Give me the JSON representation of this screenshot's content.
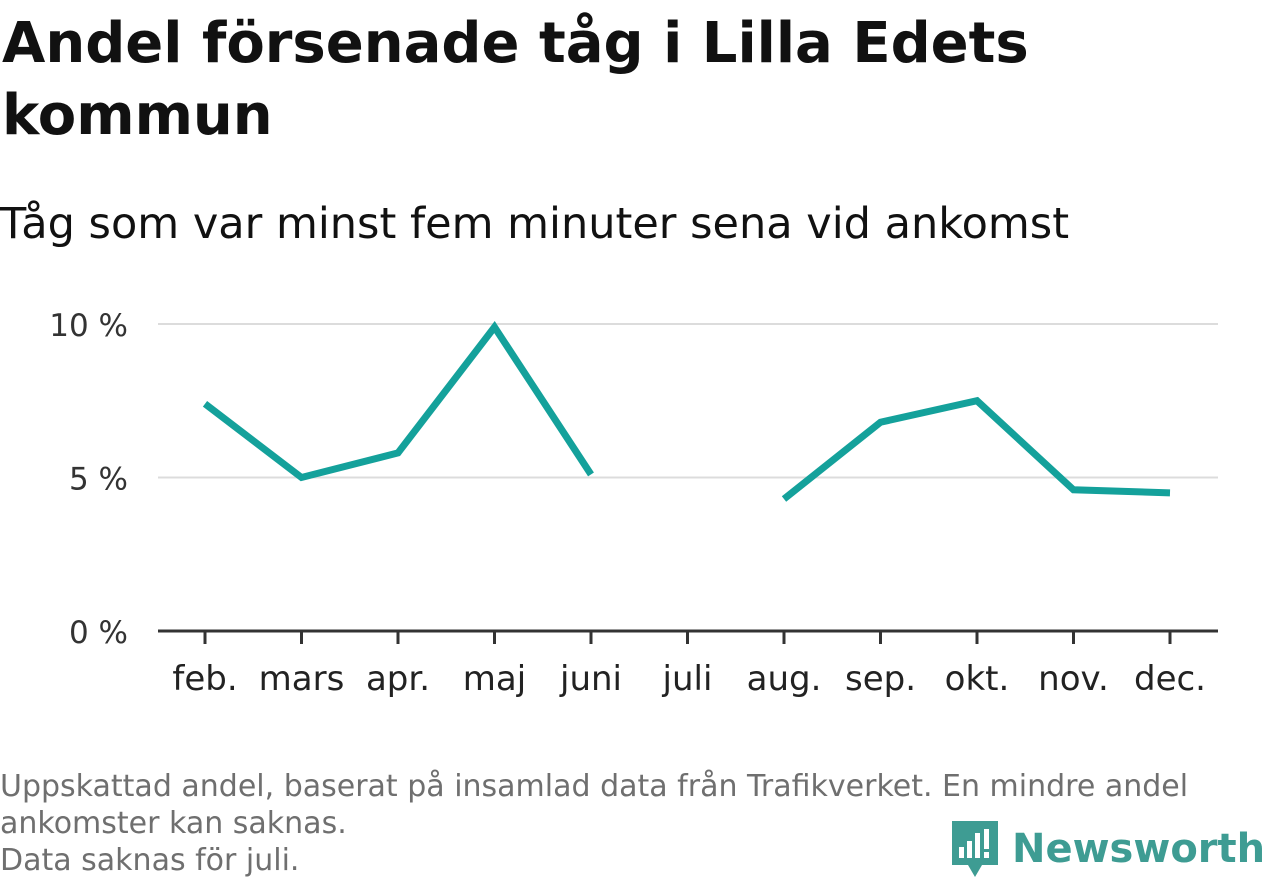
{
  "title": "Andel försenade tåg i Lilla Edets kommun",
  "subtitle": "Tåg som var minst fem minuter sena vid ankomst",
  "footer": {
    "note_line1": "Uppskattad andel, baserat på insamlad data från Trafikverket. En mindre andel",
    "note_line2": "ankomster kan saknas.",
    "note_line3": "Data saknas för juli."
  },
  "brand": {
    "name": "Newsworthy",
    "icon": "newsworthy-logo-icon",
    "color": "#3e9c93"
  },
  "chart_data": {
    "type": "line",
    "categories": [
      "feb.",
      "mars",
      "apr.",
      "maj",
      "juni",
      "juli",
      "aug.",
      "sep.",
      "okt.",
      "nov.",
      "dec."
    ],
    "series": [
      {
        "values": [
          7.4,
          5.0,
          5.8,
          9.9,
          5.1,
          null,
          4.3,
          6.8,
          7.5,
          4.6,
          4.5
        ],
        "color": "#14a19b"
      }
    ],
    "ylim": [
      0,
      10
    ],
    "yticks": [
      0,
      5,
      10
    ],
    "ytick_labels": [
      "0 %",
      "5 %",
      "10 %"
    ],
    "grid": true,
    "xlabel": "",
    "ylabel": ""
  }
}
